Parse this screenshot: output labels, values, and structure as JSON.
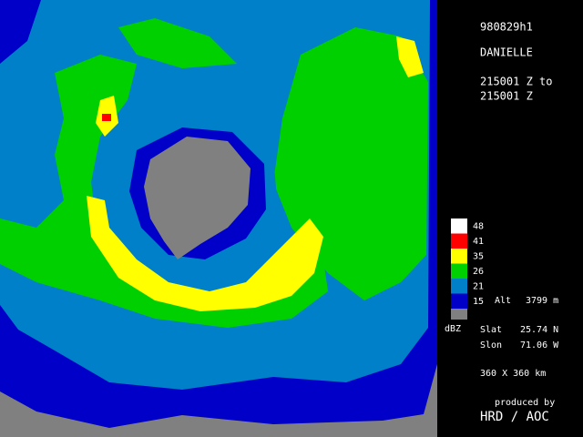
{
  "header": {
    "id": "980829h1",
    "storm": "DANIELLE",
    "time_from": "215001 Z to",
    "time_to": "215001 Z"
  },
  "legend": {
    "items": [
      {
        "label": "48",
        "color": "#ffffff"
      },
      {
        "label": "41",
        "color": "#ff0000"
      },
      {
        "label": "35",
        "color": "#ffff00"
      },
      {
        "label": "26",
        "color": "#00d000"
      },
      {
        "label": "21",
        "color": "#0080c8"
      },
      {
        "label": "15",
        "color": "#0000c8"
      }
    ],
    "below_color": "#808080",
    "unit": "dBZ",
    "altitude_label": "Alt",
    "altitude": "3799 m"
  },
  "location": {
    "slat_label": "Slat",
    "slat": "25.74 N",
    "slon_label": "Slon",
    "slon": "71.06 W"
  },
  "domain": "360 X 360 km",
  "credit": {
    "line1": "produced by",
    "line2": "HRD / AOC"
  }
}
